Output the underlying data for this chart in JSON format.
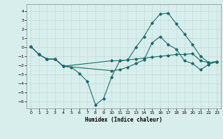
{
  "xlabel": "Humidex (Indice chaleur)",
  "bg_color": "#d8eeec",
  "grid_color": "#c0ddd9",
  "line_color": "#1a6b6b",
  "xlim": [
    -0.5,
    23.5
  ],
  "ylim": [
    -6.8,
    4.8
  ],
  "yticks": [
    -6,
    -5,
    -4,
    -3,
    -2,
    -1,
    0,
    1,
    2,
    3,
    4
  ],
  "xticks": [
    0,
    1,
    2,
    3,
    4,
    5,
    6,
    7,
    8,
    9,
    10,
    11,
    12,
    13,
    14,
    15,
    16,
    17,
    18,
    19,
    20,
    21,
    22,
    23
  ],
  "line1_x": [
    0,
    1,
    2,
    3,
    4,
    5,
    6,
    7,
    8,
    9,
    10,
    11,
    12,
    13,
    14,
    15,
    16,
    17,
    18,
    19,
    20,
    21,
    22,
    23
  ],
  "line1_y": [
    0.1,
    -0.8,
    -1.3,
    -1.3,
    -2.1,
    -2.2,
    -2.9,
    -3.8,
    -6.4,
    -5.7,
    -3.3,
    -1.5,
    -1.4,
    0.0,
    1.2,
    2.7,
    3.7,
    3.8,
    2.6,
    1.5,
    0.3,
    -1.0,
    -1.7,
    -1.6
  ],
  "line2_x": [
    0,
    1,
    2,
    3,
    4,
    10,
    11,
    12,
    13,
    14,
    15,
    16,
    17,
    18,
    19,
    20,
    21,
    22,
    23
  ],
  "line2_y": [
    0.1,
    -0.8,
    -1.3,
    -1.3,
    -2.1,
    -1.5,
    -1.5,
    -1.4,
    -1.3,
    -1.2,
    -1.1,
    -1.0,
    -0.9,
    -0.8,
    -0.8,
    -0.7,
    -1.5,
    -1.7,
    -1.6
  ],
  "line3_x": [
    0,
    1,
    2,
    3,
    4,
    10,
    11,
    12,
    13,
    14,
    15,
    16,
    17,
    18,
    19,
    20,
    21,
    22,
    23
  ],
  "line3_y": [
    0.1,
    -0.8,
    -1.3,
    -1.3,
    -2.1,
    -2.6,
    -2.5,
    -2.2,
    -1.8,
    -1.4,
    0.5,
    1.2,
    0.3,
    -0.2,
    -1.5,
    -1.8,
    -2.5,
    -1.9,
    -1.6
  ]
}
